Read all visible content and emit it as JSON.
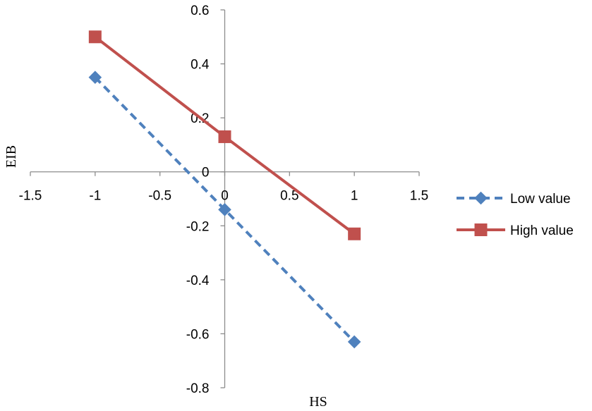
{
  "chart_data": {
    "type": "line",
    "title": "",
    "xlabel": "HS",
    "ylabel": "EIB",
    "xlim": [
      -1.5,
      1.5
    ],
    "ylim": [
      -0.8,
      0.6
    ],
    "xticks": [
      -1.5,
      -1,
      -0.5,
      0,
      0.5,
      1,
      1.5
    ],
    "yticks": [
      -0.8,
      -0.6,
      -0.4,
      -0.2,
      0,
      0.2,
      0.4,
      0.6
    ],
    "x_tick_labels": [
      "-1.5",
      "-1",
      "-0.5",
      "0",
      "0.5",
      "1",
      "1.5"
    ],
    "y_tick_labels": [
      "-0.8",
      "-0.6",
      "-0.4",
      "-0.2",
      "0",
      "0.2",
      "0.4",
      "0.6"
    ],
    "grid": false,
    "legend_position": "right",
    "series": [
      {
        "name": "Low value",
        "x": [
          -1,
          0,
          1
        ],
        "y": [
          0.35,
          -0.14,
          -0.63
        ],
        "color": "#4F81BD",
        "line_style": "dashed",
        "marker": "diamond"
      },
      {
        "name": "High value",
        "x": [
          -1,
          0,
          1
        ],
        "y": [
          0.5,
          0.13,
          -0.23
        ],
        "color": "#C0504D",
        "line_style": "solid",
        "marker": "square"
      }
    ]
  }
}
